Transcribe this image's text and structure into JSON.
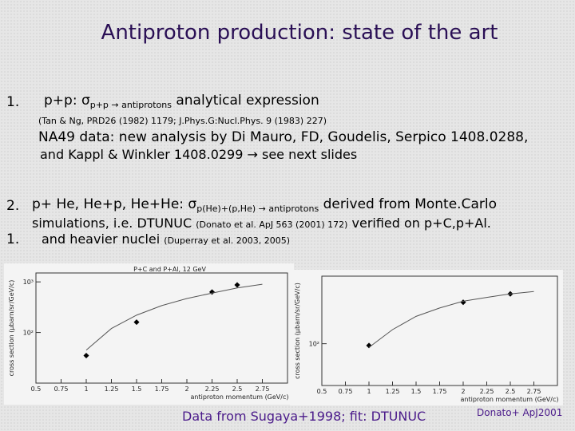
{
  "title": "Antiproton production: state of the art",
  "item1": {
    "number": "1.",
    "lead": "p+p: σ",
    "sub": "p+p → antiprotons",
    "tail": " analytical expression",
    "ref": "(Tan & Ng, PRD26 (1982) 1179; J.Phys.G:Nucl.Phys. 9 (1983) 227)",
    "note1": "NA49 data: new analysis by Di Mauro, FD, Goudelis, Serpico 1408.0288,",
    "note2": "and Kappl & Winkler 1408.0299 → see next slides"
  },
  "item2": {
    "number": "2.",
    "lead": "p+ He, He+p, He+He: σ",
    "sub": "p(He)+(p,He) → antiprotons",
    "tail": " derived from Monte.Carlo",
    "line2": "simulations, i.e. DTUNUC ",
    "ref": "(Donato et al. ApJ 563 (2001) 172)",
    "line2_tail": " verified on p+C,p+Al."
  },
  "item3": {
    "number": "1.",
    "text": "and heavier nuclei ",
    "ref": "(Duperray et al. 2003, 2005)"
  },
  "caption": "Data from Sugaya+1998; fit: DTUNUC",
  "credit": "Donato+ ApJ2001",
  "chart_data": [
    {
      "type": "scatter",
      "title": "P+C and P+Al, 12 GeV",
      "xlabel": "antiproton momentum (GeV/c)",
      "ylabel": "cross section (μbarn/sr/GeV/c)",
      "xlim": [
        0.5,
        3
      ],
      "xticks": [
        0.5,
        0.75,
        1,
        1.25,
        1.5,
        1.75,
        2,
        2.25,
        2.5,
        2.75
      ],
      "ylim": [
        10,
        1500
      ],
      "yticks": [
        {
          "value": 100,
          "label": "10²"
        },
        {
          "value": 1000,
          "label": "10³"
        }
      ],
      "log_y": true,
      "series": [
        {
          "mode": "markers",
          "color": "#000000",
          "x": [
            1,
            1.5,
            2.25,
            2.5
          ],
          "values": [
            35,
            160,
            630,
            870
          ]
        },
        {
          "mode": "line",
          "color": "#555555",
          "x": [
            1,
            1.25,
            1.5,
            1.75,
            2,
            2.25,
            2.5,
            2.75
          ],
          "values": [
            45,
            120,
            220,
            340,
            470,
            600,
            760,
            900
          ]
        }
      ]
    },
    {
      "type": "scatter",
      "xlabel": "antiproton momentum (GeV/c)",
      "ylabel": "cross section (μbarn/sr/GeV/c)",
      "xlim": [
        0.5,
        3
      ],
      "xticks": [
        0.5,
        0.75,
        1,
        1.25,
        1.5,
        1.75,
        2,
        2.25,
        2.5,
        2.75
      ],
      "ylim": [
        30,
        700
      ],
      "yticks": [
        {
          "value": 100,
          "label": "10²"
        }
      ],
      "log_y": true,
      "series": [
        {
          "mode": "markers",
          "color": "#000000",
          "x": [
            1,
            2,
            2.5
          ],
          "values": [
            95,
            330,
            420
          ]
        },
        {
          "mode": "line",
          "color": "#555555",
          "x": [
            1,
            1.25,
            1.5,
            1.75,
            2,
            2.25,
            2.5,
            2.75
          ],
          "values": [
            90,
            150,
            220,
            280,
            340,
            380,
            420,
            450
          ]
        }
      ]
    }
  ]
}
